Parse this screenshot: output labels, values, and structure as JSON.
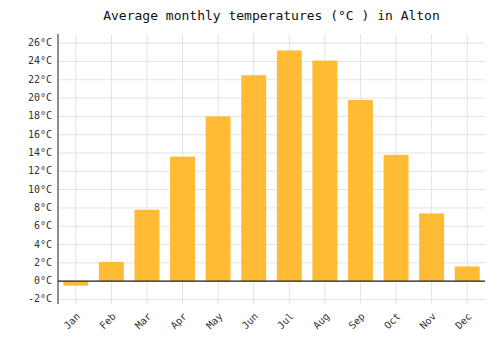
{
  "chart_data": {
    "type": "bar",
    "title": "Average monthly temperatures (°C ) in Alton",
    "categories": [
      "Jan",
      "Feb",
      "Mar",
      "Apr",
      "May",
      "Jun",
      "Jul",
      "Aug",
      "Sep",
      "Oct",
      "Nov",
      "Dec"
    ],
    "values": [
      -0.5,
      2.1,
      7.8,
      13.6,
      18.0,
      22.5,
      25.2,
      24.1,
      19.8,
      13.8,
      7.4,
      1.6
    ],
    "color": "#FFBB33",
    "ylim": [
      -2.5,
      27
    ],
    "yticks": [
      {
        "value": -2,
        "label": "-2°C"
      },
      {
        "value": 0,
        "label": "0°C"
      },
      {
        "value": 2,
        "label": "2°C"
      },
      {
        "value": 4,
        "label": "4°C"
      },
      {
        "value": 6,
        "label": "6°C"
      },
      {
        "value": 8,
        "label": "8°C"
      },
      {
        "value": 10,
        "label": "10°C"
      },
      {
        "value": 12,
        "label": "12°C"
      },
      {
        "value": 14,
        "label": "14°C"
      },
      {
        "value": 16,
        "label": "16°C"
      },
      {
        "value": 18,
        "label": "18°C"
      },
      {
        "value": 20,
        "label": "20°C"
      },
      {
        "value": 22,
        "label": "22°C"
      },
      {
        "value": 24,
        "label": "24°C"
      },
      {
        "value": 26,
        "label": "26°C"
      }
    ],
    "grid": true
  }
}
